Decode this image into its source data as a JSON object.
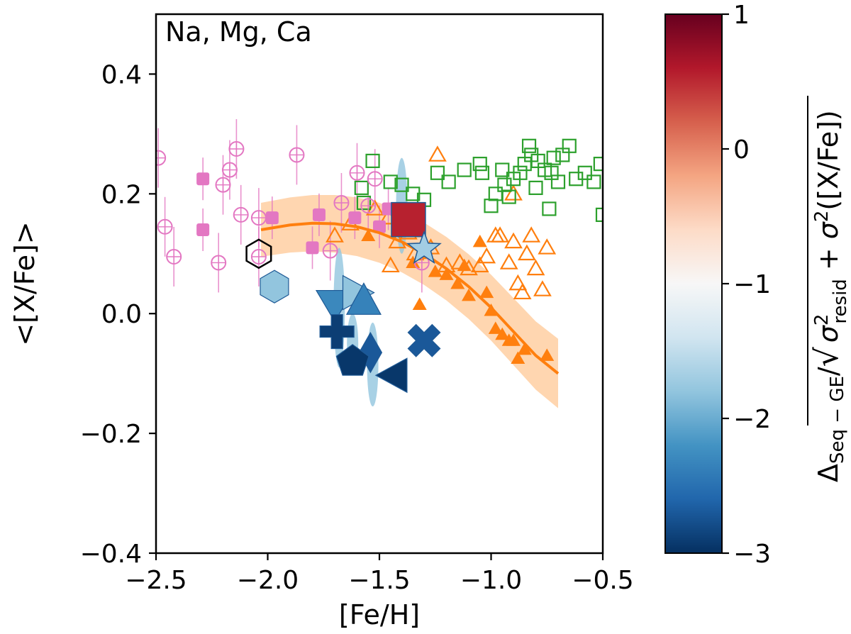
{
  "chart_data": {
    "type": "scatter",
    "annotation": "Na, Mg, Ca",
    "xlabel": "[Fe/H]",
    "ylabel": "<[X/Fe]>",
    "xlim": [
      -2.5,
      -0.5
    ],
    "ylim": [
      -0.4,
      0.5
    ],
    "xticks": [
      -2.5,
      -2.0,
      -1.5,
      -1.0,
      -0.5
    ],
    "xtick_labels": [
      "−2.5",
      "−2.0",
      "−1.5",
      "−1.0",
      "−0.5"
    ],
    "yticks": [
      -0.4,
      -0.2,
      0.0,
      0.2,
      0.4
    ],
    "ytick_labels": [
      "−0.4",
      "−0.2",
      "0.0",
      "0.2",
      "0.4"
    ],
    "colorbar": {
      "label": "ΔSeq − GE / √(σ²resid + σ²([X/Fe]))",
      "range": [
        -3,
        1
      ],
      "ticks": [
        1,
        0,
        -1,
        -2,
        -3
      ],
      "tick_labels": [
        "1",
        "0",
        "−1",
        "−2",
        "−3"
      ],
      "colormap": "RdBu_r"
    },
    "colors": {
      "pink": "#e377c2",
      "orange": "#ff7f0e",
      "green": "#2ca02c",
      "band": "#ffc896"
    },
    "series": [
      {
        "name": "open-circles-pink",
        "marker": "circle-plus-open",
        "points": [
          [
            -2.49,
            0.26
          ],
          [
            -2.46,
            0.145
          ],
          [
            -2.42,
            0.095
          ],
          [
            -2.22,
            0.085
          ],
          [
            -2.2,
            0.215
          ],
          [
            -2.17,
            0.24
          ],
          [
            -2.14,
            0.275
          ],
          [
            -2.12,
            0.165
          ],
          [
            -2.04,
            0.16
          ],
          [
            -2.04,
            0.095
          ],
          [
            -1.87,
            0.265
          ],
          [
            -1.72,
            0.105
          ],
          [
            -1.67,
            0.185
          ],
          [
            -1.6,
            0.235
          ],
          [
            -1.55,
            0.18
          ],
          [
            -1.52,
            0.225
          ],
          [
            -1.31,
            0.085
          ]
        ]
      },
      {
        "name": "filled-squares-pink",
        "marker": "square-filled",
        "points": [
          [
            -2.29,
            0.225
          ],
          [
            -2.29,
            0.14
          ],
          [
            -1.98,
            0.16
          ],
          [
            -1.8,
            0.11
          ],
          [
            -1.77,
            0.165
          ],
          [
            -1.61,
            0.16
          ],
          [
            -1.5,
            0.145
          ],
          [
            -1.46,
            0.175
          ]
        ]
      },
      {
        "name": "open-squares-green",
        "marker": "square-open",
        "points": [
          [
            -1.53,
            0.255
          ],
          [
            -1.58,
            0.21
          ],
          [
            -1.57,
            0.185
          ],
          [
            -1.45,
            0.22
          ],
          [
            -1.4,
            0.215
          ],
          [
            -1.35,
            0.2
          ],
          [
            -1.3,
            0.19
          ],
          [
            -1.24,
            0.235
          ],
          [
            -1.19,
            0.22
          ],
          [
            -1.12,
            0.24
          ],
          [
            -1.05,
            0.25
          ],
          [
            -1.04,
            0.235
          ],
          [
            -0.98,
            0.2
          ],
          [
            -0.94,
            0.215
          ],
          [
            -0.9,
            0.225
          ],
          [
            -0.87,
            0.235
          ],
          [
            -0.85,
            0.25
          ],
          [
            -0.82,
            0.265
          ],
          [
            -0.79,
            0.255
          ],
          [
            -0.76,
            0.24
          ],
          [
            -0.73,
            0.235
          ],
          [
            -0.7,
            0.22
          ],
          [
            -0.68,
            0.265
          ],
          [
            -0.65,
            0.28
          ],
          [
            -0.62,
            0.225
          ],
          [
            -0.58,
            0.235
          ],
          [
            -0.54,
            0.22
          ],
          [
            -0.51,
            0.25
          ],
          [
            -0.5,
            0.165
          ],
          [
            -0.74,
            0.175
          ],
          [
            -0.8,
            0.21
          ],
          [
            -0.92,
            0.195
          ],
          [
            -0.95,
            0.24
          ],
          [
            -1.0,
            0.18
          ],
          [
            -0.83,
            0.28
          ],
          [
            -0.72,
            0.26
          ]
        ]
      },
      {
        "name": "open-triangles-orange",
        "marker": "triangle-open",
        "points": [
          [
            -1.63,
            0.15
          ],
          [
            -1.52,
            0.175
          ],
          [
            -1.46,
            0.16
          ],
          [
            -1.42,
            0.12
          ],
          [
            -1.37,
            0.135
          ],
          [
            -1.34,
            0.1
          ],
          [
            -1.27,
            0.11
          ],
          [
            -1.24,
            0.265
          ],
          [
            -1.2,
            0.08
          ],
          [
            -1.14,
            0.085
          ],
          [
            -1.1,
            0.075
          ],
          [
            -1.05,
            0.08
          ],
          [
            -1.02,
            0.095
          ],
          [
            -0.98,
            0.13
          ],
          [
            -0.96,
            0.13
          ],
          [
            -0.92,
            0.085
          ],
          [
            -0.9,
            0.12
          ],
          [
            -0.88,
            0.05
          ],
          [
            -0.86,
            0.035
          ],
          [
            -0.84,
            0.1
          ],
          [
            -0.82,
            0.13
          ],
          [
            -0.8,
            0.075
          ],
          [
            -0.77,
            0.04
          ],
          [
            -0.9,
            0.2
          ],
          [
            -0.75,
            0.11
          ],
          [
            -1.45,
            0.08
          ],
          [
            -1.7,
            0.13
          ]
        ]
      },
      {
        "name": "filled-triangles-orange",
        "marker": "triangle-filled",
        "points": [
          [
            -1.55,
            0.13
          ],
          [
            -1.35,
            0.085
          ],
          [
            -1.3,
            0.1
          ],
          [
            -1.25,
            0.07
          ],
          [
            -1.2,
            0.065
          ],
          [
            -1.15,
            0.05
          ],
          [
            -1.1,
            0.03
          ],
          [
            -1.05,
            0.12
          ],
          [
            -1.02,
            0.035
          ],
          [
            -1.0,
            0.005
          ],
          [
            -0.98,
            -0.025
          ],
          [
            -0.95,
            -0.035
          ],
          [
            -0.92,
            -0.045
          ],
          [
            -0.9,
            -0.045
          ],
          [
            -0.88,
            -0.075
          ],
          [
            -0.85,
            -0.06
          ],
          [
            -0.75,
            -0.07
          ],
          [
            -1.32,
            0.015
          ],
          [
            -1.12,
            0.08
          ]
        ]
      }
    ],
    "fit_curve": {
      "x": [
        -2.03,
        -1.9,
        -1.8,
        -1.7,
        -1.6,
        -1.5,
        -1.4,
        -1.3,
        -1.2,
        -1.1,
        -1.0,
        -0.9,
        -0.8,
        -0.7
      ],
      "y": [
        0.14,
        0.148,
        0.151,
        0.15,
        0.145,
        0.135,
        0.12,
        0.1,
        0.075,
        0.045,
        0.01,
        -0.03,
        -0.07,
        -0.1
      ],
      "band_halfwidth": 0.045
    },
    "highlighted": [
      {
        "marker": "hexagon-open-black",
        "x": -2.04,
        "y": 0.1,
        "cvalue": null
      },
      {
        "marker": "hexagon",
        "x": -1.97,
        "y": 0.045,
        "cvalue": -1.8
      },
      {
        "marker": "square",
        "x": -1.37,
        "y": 0.157,
        "cvalue": 0.55
      },
      {
        "marker": "star",
        "x": -1.3,
        "y": 0.108,
        "cvalue": -1.7
      },
      {
        "marker": "triangle-down",
        "x": -1.7,
        "y": 0.015,
        "cvalue": -2.3
      },
      {
        "marker": "triangle-right",
        "x": -1.6,
        "y": 0.035,
        "cvalue": -1.8
      },
      {
        "marker": "triangle-up",
        "x": -1.57,
        "y": 0.02,
        "cvalue": -2.35
      },
      {
        "marker": "plus",
        "x": -1.69,
        "y": -0.03,
        "cvalue": -2.9
      },
      {
        "marker": "diamond",
        "x": -1.54,
        "y": -0.065,
        "cvalue": -2.7
      },
      {
        "marker": "pentagon",
        "x": -1.62,
        "y": -0.08,
        "cvalue": -2.95
      },
      {
        "marker": "triangle-left",
        "x": -1.44,
        "y": -0.103,
        "cvalue": -2.95
      },
      {
        "marker": "x",
        "x": -1.3,
        "y": -0.045,
        "cvalue": -2.7
      }
    ],
    "error_halos": [
      {
        "x": -1.68,
        "y": 0.01,
        "h": 0.1
      },
      {
        "x": -1.53,
        "y": -0.085,
        "h": 0.07
      },
      {
        "x": -1.4,
        "y": 0.18,
        "h": 0.08
      },
      {
        "x": -1.62,
        "y": -0.05,
        "h": 0.05
      }
    ]
  }
}
